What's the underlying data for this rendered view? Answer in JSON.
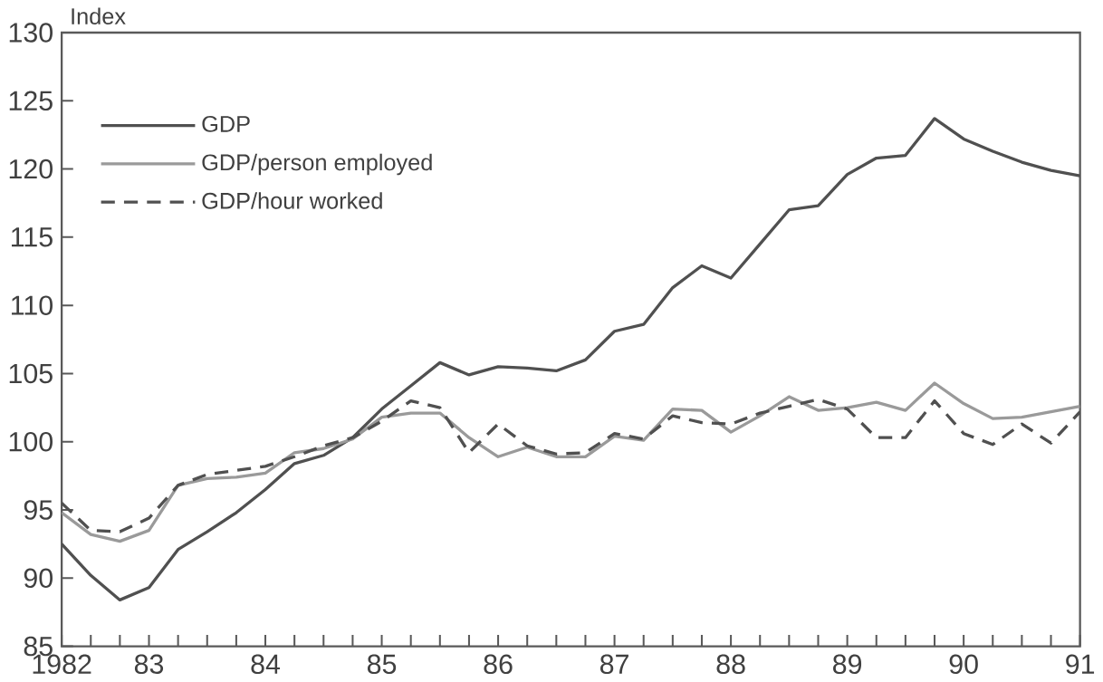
{
  "chart_data": {
    "type": "line",
    "ylabel": "Index",
    "x": [
      1982.25,
      1982.5,
      1982.75,
      1983.0,
      1983.25,
      1983.5,
      1983.75,
      1984.0,
      1984.25,
      1984.5,
      1984.75,
      1985.0,
      1985.25,
      1985.5,
      1985.75,
      1986.0,
      1986.25,
      1986.5,
      1986.75,
      1987.0,
      1987.25,
      1987.5,
      1987.75,
      1988.0,
      1988.25,
      1988.5,
      1988.75,
      1989.0,
      1989.25,
      1989.5,
      1989.75,
      1990.0,
      1990.25,
      1990.5,
      1990.75,
      1991.0
    ],
    "series": [
      {
        "name": "GDP",
        "color": "#505050",
        "line_style": "solid",
        "values": [
          92.5,
          90.2,
          88.4,
          89.3,
          92.1,
          93.4,
          94.8,
          96.5,
          98.4,
          99.0,
          100.3,
          102.4,
          104.1,
          105.8,
          104.9,
          105.5,
          105.4,
          105.2,
          106.0,
          108.1,
          108.6,
          111.3,
          112.9,
          112.0,
          114.5,
          117.0,
          117.3,
          119.6,
          120.8,
          121.0,
          123.7,
          122.2,
          121.3,
          120.5,
          119.9,
          119.5
        ]
      },
      {
        "name": "GDP/person employed",
        "color": "#9a9a9a",
        "line_style": "solid",
        "values": [
          94.8,
          93.2,
          92.7,
          93.5,
          96.8,
          97.3,
          97.4,
          97.7,
          99.2,
          99.5,
          100.2,
          101.8,
          102.1,
          102.1,
          100.3,
          98.9,
          99.6,
          98.9,
          98.9,
          100.4,
          100.1,
          102.4,
          102.3,
          100.7,
          101.9,
          103.3,
          102.3,
          102.5,
          102.9,
          102.3,
          104.3,
          102.8,
          101.7,
          101.8,
          102.2,
          102.6
        ]
      },
      {
        "name": "GDP/hour worked",
        "color": "#505050",
        "line_style": "dashed",
        "values": [
          95.5,
          93.5,
          93.4,
          94.4,
          96.8,
          97.6,
          97.9,
          98.2,
          98.9,
          99.7,
          100.3,
          101.5,
          103.0,
          102.5,
          99.2,
          101.3,
          99.7,
          99.1,
          99.2,
          100.6,
          100.2,
          101.9,
          101.4,
          101.3,
          102.1,
          102.6,
          103.1,
          102.4,
          100.3,
          100.3,
          103.0,
          100.6,
          99.8,
          101.3,
          99.9,
          102.2
        ]
      }
    ],
    "xlim": [
      1982.25,
      1991
    ],
    "xticks": [
      {
        "value": 1982.25,
        "label": "1982"
      },
      {
        "value": 1982.5,
        "label": null
      },
      {
        "value": 1982.75,
        "label": null
      },
      {
        "value": 1983,
        "label": "83"
      },
      {
        "value": 1983.25,
        "label": null
      },
      {
        "value": 1983.5,
        "label": null
      },
      {
        "value": 1983.75,
        "label": null
      },
      {
        "value": 1984,
        "label": "84"
      },
      {
        "value": 1984.25,
        "label": null
      },
      {
        "value": 1984.5,
        "label": null
      },
      {
        "value": 1984.75,
        "label": null
      },
      {
        "value": 1985,
        "label": "85"
      },
      {
        "value": 1985.25,
        "label": null
      },
      {
        "value": 1985.5,
        "label": null
      },
      {
        "value": 1985.75,
        "label": null
      },
      {
        "value": 1986,
        "label": "86"
      },
      {
        "value": 1986.25,
        "label": null
      },
      {
        "value": 1986.5,
        "label": null
      },
      {
        "value": 1986.75,
        "label": null
      },
      {
        "value": 1987,
        "label": "87"
      },
      {
        "value": 1987.25,
        "label": null
      },
      {
        "value": 1987.5,
        "label": null
      },
      {
        "value": 1987.75,
        "label": null
      },
      {
        "value": 1988,
        "label": "88"
      },
      {
        "value": 1988.25,
        "label": null
      },
      {
        "value": 1988.5,
        "label": null
      },
      {
        "value": 1988.75,
        "label": null
      },
      {
        "value": 1989,
        "label": "89"
      },
      {
        "value": 1989.25,
        "label": null
      },
      {
        "value": 1989.5,
        "label": null
      },
      {
        "value": 1989.75,
        "label": null
      },
      {
        "value": 1990,
        "label": "90"
      },
      {
        "value": 1990.25,
        "label": null
      },
      {
        "value": 1990.5,
        "label": null
      },
      {
        "value": 1990.75,
        "label": null
      },
      {
        "value": 1991,
        "label": "91"
      }
    ],
    "ylim": [
      85,
      130
    ],
    "yticks": [
      85,
      90,
      95,
      100,
      105,
      110,
      115,
      120,
      125,
      130
    ],
    "grid": false,
    "legend": "top left",
    "marker": "none"
  }
}
